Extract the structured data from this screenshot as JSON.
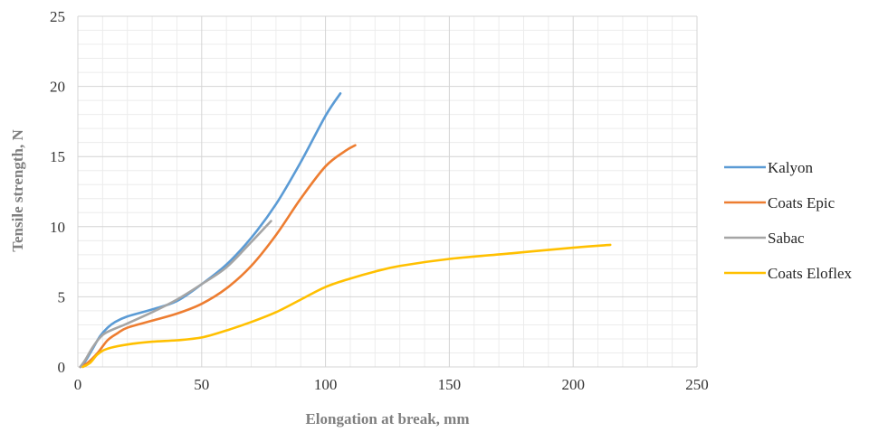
{
  "chart_data": {
    "type": "line",
    "xlabel": "Elongation at break, mm",
    "ylabel": "Tensile strength, N",
    "xlim": [
      0,
      250
    ],
    "ylim": [
      0,
      25
    ],
    "x_ticks": [
      "0",
      "50",
      "100",
      "150",
      "200",
      "250"
    ],
    "y_ticks": [
      "0",
      "5",
      "10",
      "15",
      "20",
      "25"
    ],
    "grid": true,
    "minor_grid": true,
    "legend_position": "right",
    "series": [
      {
        "name": "Kalyon",
        "color": "#5b9bd5",
        "points": [
          [
            1,
            0
          ],
          [
            3,
            0.4
          ],
          [
            6,
            1.3
          ],
          [
            9,
            2.2
          ],
          [
            12,
            2.8
          ],
          [
            15,
            3.2
          ],
          [
            20,
            3.6
          ],
          [
            30,
            4.1
          ],
          [
            40,
            4.7
          ],
          [
            50,
            5.9
          ],
          [
            60,
            7.3
          ],
          [
            70,
            9.2
          ],
          [
            80,
            11.6
          ],
          [
            90,
            14.6
          ],
          [
            100,
            17.9
          ],
          [
            106,
            19.5
          ]
        ]
      },
      {
        "name": "Coats Epic",
        "color": "#ed7d31",
        "points": [
          [
            1,
            0
          ],
          [
            4,
            0.3
          ],
          [
            8,
            1.0
          ],
          [
            12,
            1.9
          ],
          [
            16,
            2.4
          ],
          [
            20,
            2.8
          ],
          [
            30,
            3.3
          ],
          [
            40,
            3.8
          ],
          [
            50,
            4.5
          ],
          [
            60,
            5.6
          ],
          [
            70,
            7.2
          ],
          [
            80,
            9.4
          ],
          [
            90,
            12.0
          ],
          [
            100,
            14.3
          ],
          [
            108,
            15.4
          ],
          [
            112,
            15.8
          ]
        ]
      },
      {
        "name": "Sabac",
        "color": "#a5a5a5",
        "points": [
          [
            1,
            0
          ],
          [
            3,
            0.5
          ],
          [
            6,
            1.4
          ],
          [
            9,
            2.1
          ],
          [
            12,
            2.5
          ],
          [
            20,
            3.1
          ],
          [
            30,
            3.9
          ],
          [
            40,
            4.8
          ],
          [
            50,
            5.9
          ],
          [
            60,
            7.1
          ],
          [
            70,
            8.9
          ],
          [
            78,
            10.4
          ]
        ]
      },
      {
        "name": "Coats Eloflex",
        "color": "#ffc000",
        "points": [
          [
            2,
            0
          ],
          [
            5,
            0.3
          ],
          [
            8,
            0.9
          ],
          [
            12,
            1.3
          ],
          [
            20,
            1.6
          ],
          [
            30,
            1.8
          ],
          [
            40,
            1.9
          ],
          [
            50,
            2.1
          ],
          [
            60,
            2.6
          ],
          [
            70,
            3.2
          ],
          [
            80,
            3.9
          ],
          [
            90,
            4.8
          ],
          [
            100,
            5.7
          ],
          [
            110,
            6.3
          ],
          [
            120,
            6.8
          ],
          [
            130,
            7.2
          ],
          [
            150,
            7.7
          ],
          [
            175,
            8.1
          ],
          [
            200,
            8.5
          ],
          [
            215,
            8.7
          ]
        ]
      }
    ]
  }
}
